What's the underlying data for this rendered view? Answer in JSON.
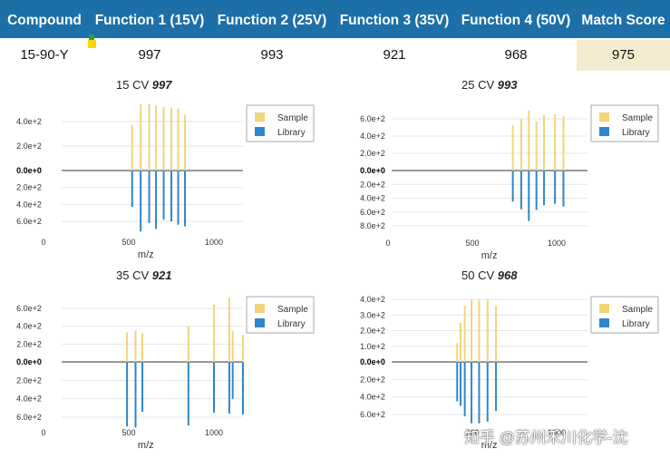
{
  "table": {
    "headers": [
      "Compound",
      "Function 1 (15V)",
      "Function 2 (25V)",
      "Function 3 (35V)",
      "Function 4 (50V)",
      "Match Score"
    ],
    "row": [
      "15-90-Y",
      "997",
      "993",
      "921",
      "968",
      "975"
    ]
  },
  "watermark": "知乎 @苏州禾川化学-沈",
  "colors": {
    "header_bg": "#1d6fa8",
    "sample": "#f2d47a",
    "library": "#2f86c9",
    "score_cell": "#f3ebcf"
  },
  "chart_data": [
    {
      "type": "bar",
      "title_prefix": "15 CV",
      "title_score": "997",
      "xlabel": "m/z",
      "x_ticks": [
        "0",
        "500",
        "1000"
      ],
      "xlim": [
        0,
        1200
      ],
      "y_ticks_top": [
        "4.0e+2",
        "2.0e+2",
        "0.0e+0"
      ],
      "y_ticks_bottom": [
        "2.0e+2",
        "4.0e+2",
        "6.0e+2"
      ],
      "ylim_top": 550,
      "ylim_bottom": 700,
      "legend": [
        "Sample",
        "Library"
      ],
      "sample": {
        "mz": [
          520,
          570,
          620,
          660,
          705,
          750,
          790,
          830
        ],
        "values": [
          370,
          540,
          545,
          530,
          520,
          515,
          505,
          455
        ]
      },
      "library": {
        "mz": [
          520,
          570,
          620,
          660,
          705,
          750,
          790,
          830
        ],
        "values": [
          430,
          720,
          620,
          690,
          580,
          600,
          640,
          660
        ]
      }
    },
    {
      "type": "bar",
      "title_prefix": "25 CV",
      "title_score": "993",
      "xlabel": "m/z",
      "x_ticks": [
        "0",
        "500",
        "1000"
      ],
      "xlim": [
        0,
        1200
      ],
      "y_ticks_top": [
        "6.0e+2",
        "4.0e+2",
        "2.0e+2",
        "0.0e+0"
      ],
      "y_ticks_bottom": [
        "2.0e+2",
        "4.0e+2",
        "6.0e+2",
        "8.0e+2"
      ],
      "ylim_top": 700,
      "ylim_bottom": 900,
      "legend": [
        "Sample",
        "Library"
      ],
      "sample": {
        "mz": [
          740,
          790,
          835,
          880,
          925,
          990,
          1040
        ],
        "values": [
          530,
          600,
          700,
          570,
          640,
          650,
          630
        ]
      },
      "library": {
        "mz": [
          740,
          790,
          835,
          880,
          925,
          990,
          1040
        ],
        "values": [
          450,
          560,
          730,
          570,
          500,
          480,
          520
        ]
      }
    },
    {
      "type": "bar",
      "title_prefix": "35 CV",
      "title_score": "921",
      "xlabel": "m/z",
      "x_ticks": [
        "0",
        "500",
        "1000"
      ],
      "xlim": [
        0,
        1200
      ],
      "y_ticks_top": [
        "6.0e+2",
        "4.0e+2",
        "2.0e+2",
        "0.0e+0"
      ],
      "y_ticks_bottom": [
        "2.0e+2",
        "4.0e+2",
        "6.0e+2"
      ],
      "ylim_top": 750,
      "ylim_bottom": 700,
      "legend": [
        "Sample",
        "Library"
      ],
      "sample": {
        "mz": [
          490,
          540,
          580,
          850,
          1000,
          1090,
          1110,
          1170
        ],
        "values": [
          330,
          350,
          320,
          400,
          640,
          720,
          350,
          300
        ]
      },
      "library": {
        "mz": [
          490,
          540,
          580,
          850,
          1000,
          1090,
          1110,
          1170
        ],
        "values": [
          700,
          710,
          540,
          690,
          550,
          560,
          400,
          570
        ]
      }
    },
    {
      "type": "bar",
      "title_prefix": "50 CV",
      "title_score": "968",
      "xlabel": "m/z",
      "x_ticks": [
        "500",
        "1000"
      ],
      "xlim": [
        0,
        1200
      ],
      "y_ticks_top": [
        "4.0e+2",
        "3.0e+2",
        "2.0e+2",
        "1.0e+2",
        "0.0e+0"
      ],
      "y_ticks_bottom": [
        "2.0e+2",
        "4.0e+2",
        "6.0e+2"
      ],
      "ylim_top": 420,
      "ylim_bottom": 720,
      "legend": [
        "Sample",
        "Library"
      ],
      "sample": {
        "mz": [
          410,
          430,
          455,
          495,
          540,
          590,
          640
        ],
        "values": [
          120,
          250,
          360,
          400,
          400,
          400,
          360
        ]
      },
      "library": {
        "mz": [
          410,
          430,
          455,
          495,
          540,
          590,
          640
        ],
        "values": [
          450,
          500,
          620,
          700,
          700,
          680,
          560
        ]
      }
    }
  ]
}
